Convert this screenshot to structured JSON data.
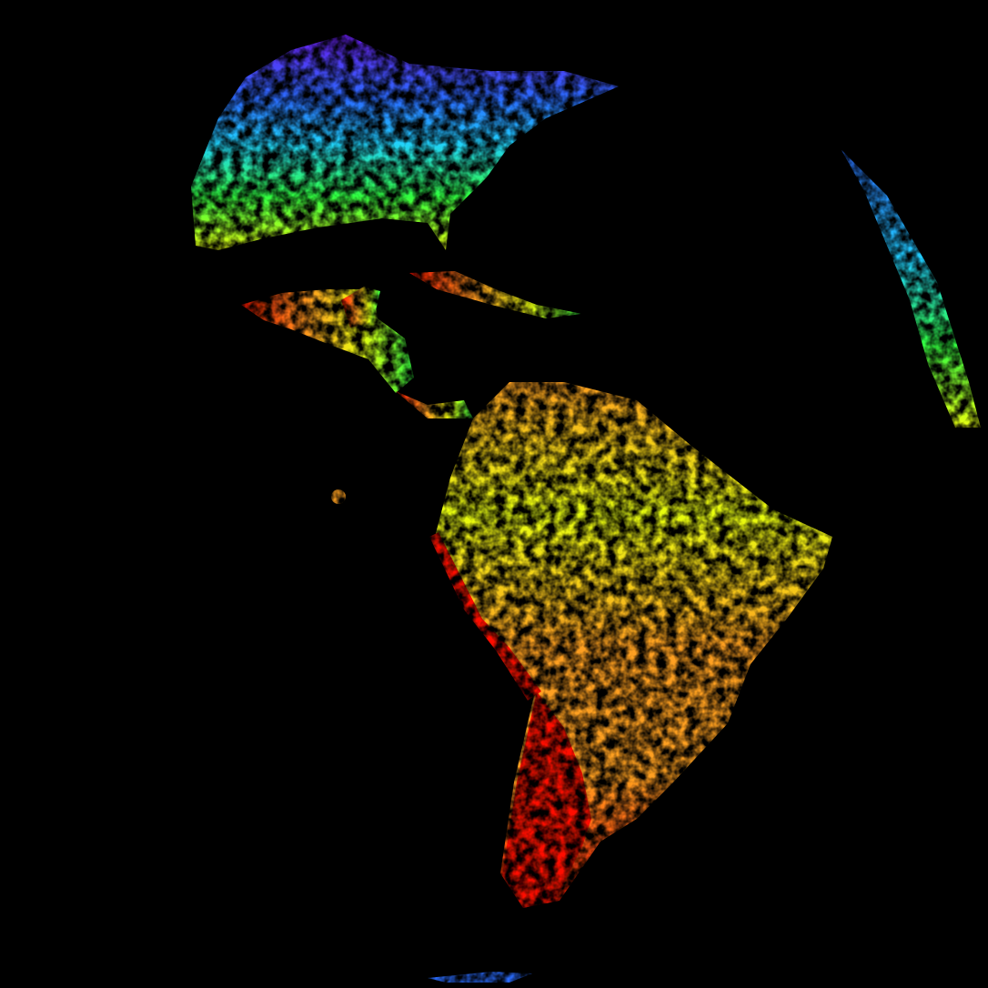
{
  "background": "#000000",
  "colormap": {
    "purple": "#6a1cf0",
    "blue": "#2a6cff",
    "cyan": "#20d0ff",
    "green": "#30ff40",
    "yellow": "#e8ff10",
    "orange": "#ffa020",
    "red": "#ff1000"
  }
}
